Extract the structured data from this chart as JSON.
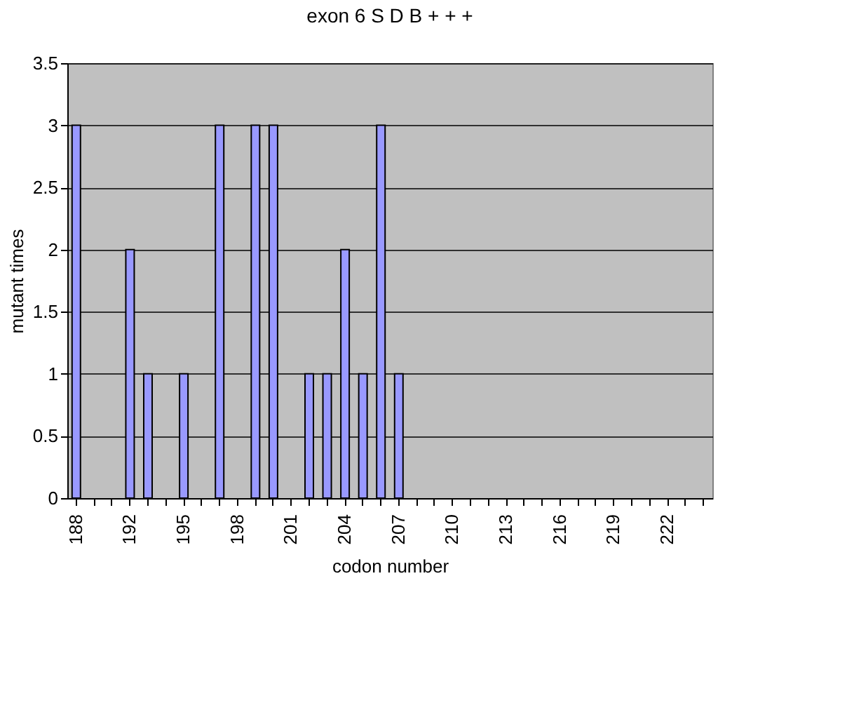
{
  "chart_data": {
    "type": "bar",
    "title": "exon 6 S D B + + +",
    "xlabel": "codon number",
    "ylabel": "mutant times",
    "categories": [
      "188",
      null,
      null,
      "192",
      null,
      null,
      "195",
      null,
      null,
      "198",
      null,
      null,
      "201",
      null,
      null,
      "204",
      null,
      null,
      "207",
      null,
      null,
      "210",
      null,
      null,
      "213",
      null,
      null,
      "216",
      null,
      null,
      "219",
      null,
      null,
      "222",
      null,
      null
    ],
    "series": [
      {
        "color": "#9999ff",
        "values": [
          3,
          null,
          null,
          2,
          1,
          null,
          1,
          null,
          3,
          null,
          3,
          3,
          null,
          1,
          1,
          2,
          1,
          3,
          1,
          null,
          null,
          null,
          null,
          null,
          null,
          null,
          null,
          null,
          null,
          null,
          null,
          null,
          null,
          null,
          null,
          null
        ]
      }
    ],
    "ylim": [
      0,
      3.5
    ],
    "yticks": [
      0,
      0.5,
      1,
      1.5,
      2,
      2.5,
      3,
      3.5
    ],
    "grid": "y",
    "legend": false
  }
}
